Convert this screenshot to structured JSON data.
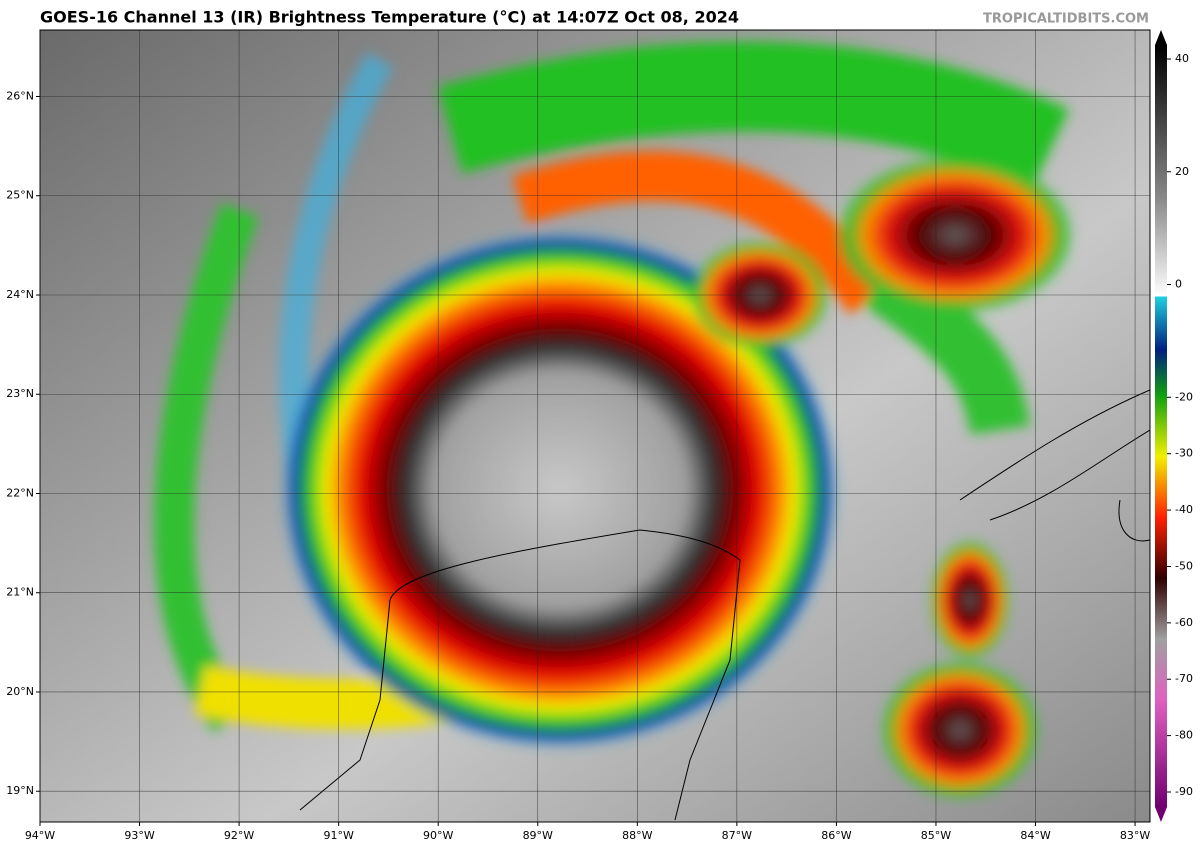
{
  "map": {
    "title": "GOES-16 Channel 13 (IR) Brightness Temperature (°C) at 14:07Z Oct 08, 2024",
    "watermark": "TROPICALTIDBITS.COM",
    "xlim": [
      -94,
      -82.85
    ],
    "ylim": [
      18.69,
      26.67
    ],
    "xticks": [
      {
        "value": -94,
        "label": "94°W"
      },
      {
        "value": -93,
        "label": "93°W"
      },
      {
        "value": -92,
        "label": "92°W"
      },
      {
        "value": -91,
        "label": "91°W"
      },
      {
        "value": -90,
        "label": "90°W"
      },
      {
        "value": -89,
        "label": "89°W"
      },
      {
        "value": -88,
        "label": "88°W"
      },
      {
        "value": -87,
        "label": "87°W"
      },
      {
        "value": -86,
        "label": "86°W"
      },
      {
        "value": -85,
        "label": "85°W"
      },
      {
        "value": -84,
        "label": "84°W"
      },
      {
        "value": -83,
        "label": "83°W"
      }
    ],
    "yticks": [
      {
        "value": 19,
        "label": "19°N"
      },
      {
        "value": 20,
        "label": "20°N"
      },
      {
        "value": 21,
        "label": "21°N"
      },
      {
        "value": 22,
        "label": "22°N"
      },
      {
        "value": 23,
        "label": "23°N"
      },
      {
        "value": 24,
        "label": "24°N"
      },
      {
        "value": 25,
        "label": "25°N"
      },
      {
        "value": 26,
        "label": "26°N"
      }
    ],
    "grid": true,
    "colorbar": {
      "lim": [
        -90,
        40
      ],
      "ticks": [
        40,
        20,
        0,
        -20,
        -30,
        -40,
        -50,
        -60,
        -70,
        -80,
        -90
      ]
    }
  }
}
